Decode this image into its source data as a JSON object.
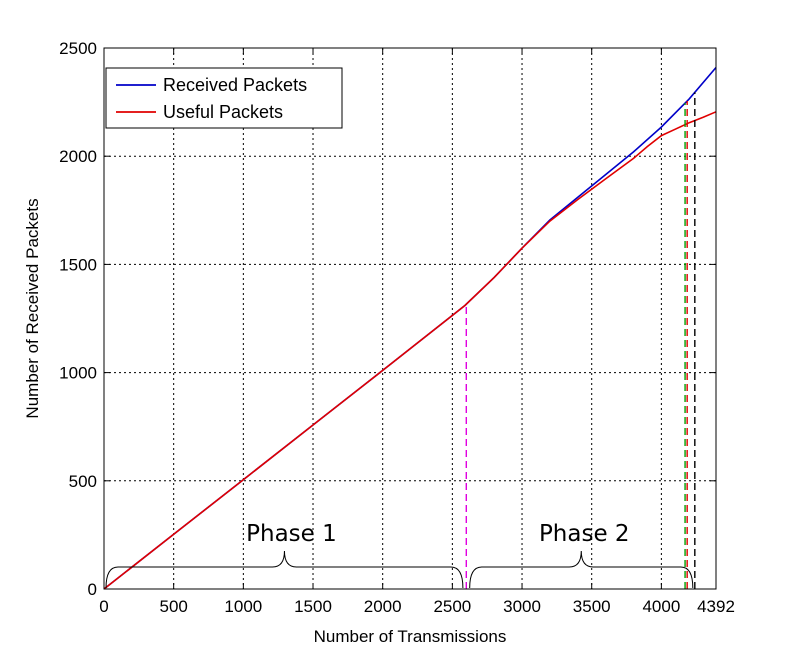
{
  "chart_data": {
    "type": "line",
    "title": "",
    "xlabel": "Number of Transmissions",
    "ylabel": "Number of Received Packets",
    "xlim": [
      0,
      4392
    ],
    "ylim": [
      0,
      2500
    ],
    "xticks": [
      0,
      500,
      1000,
      1500,
      2000,
      2500,
      3000,
      3500,
      4000,
      4392
    ],
    "xtick_labels": [
      "0",
      "500",
      "1000",
      "1500",
      "2000",
      "2500",
      "3000",
      "3500",
      "4000",
      "4392"
    ],
    "yticks": [
      0,
      500,
      1000,
      1500,
      2000,
      2500
    ],
    "ytick_labels": [
      "0",
      "500",
      "1000",
      "1500",
      "2000",
      "2500"
    ],
    "grid": true,
    "legend_position": "top-left",
    "series": [
      {
        "name": "Received Packets",
        "color": "#0000c8",
        "x": [
          0,
          500,
          1000,
          1500,
          2000,
          2590,
          2800,
          3000,
          3200,
          3400,
          3600,
          3800,
          4000,
          4200,
          4392
        ],
        "y": [
          0,
          253,
          505,
          758,
          1010,
          1310,
          1440,
          1575,
          1705,
          1810,
          1915,
          2020,
          2135,
          2265,
          2410
        ]
      },
      {
        "name": "Useful Packets",
        "color": "#e00000",
        "x": [
          0,
          500,
          1000,
          1500,
          2000,
          2590,
          2800,
          3000,
          3200,
          3400,
          3600,
          3800,
          3900,
          4000,
          4100,
          4200,
          4300,
          4392
        ],
        "y": [
          0,
          253,
          505,
          758,
          1010,
          1310,
          1440,
          1575,
          1700,
          1800,
          1895,
          1990,
          2045,
          2095,
          2125,
          2155,
          2180,
          2205
        ]
      }
    ],
    "vertical_lines": [
      {
        "x": 2600,
        "color": "#e000e0",
        "style": "dashed"
      },
      {
        "x": 4170,
        "color": "#00a000",
        "style": "dashed"
      },
      {
        "x": 4185,
        "color": "#e00000",
        "style": "dashed"
      },
      {
        "x": 4240,
        "color": "#000000",
        "style": "dashed"
      }
    ],
    "annotations": [
      {
        "label": "Phase 1",
        "x_start": 0,
        "x_end": 2590,
        "kind": "brace"
      },
      {
        "label": "Phase 2",
        "x_start": 2610,
        "x_end": 4240,
        "kind": "brace"
      }
    ]
  }
}
